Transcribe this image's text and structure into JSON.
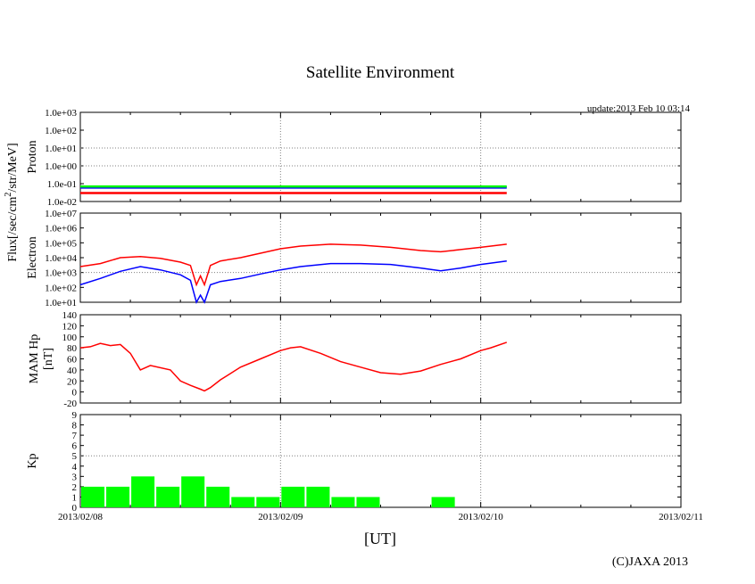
{
  "title": "Satellite Environment",
  "update": "update:2013 Feb 10 03:14",
  "credit": "(C)JAXA 2013",
  "x_unit_label": "[UT]",
  "flux_label": "Flux[/sec/cm",
  "flux_sup": "2",
  "flux_label_rest": "/str/MeV]",
  "colors": {
    "red": "#ff0000",
    "blue": "#0000ff",
    "green": "#00ff00",
    "grid": "#808080"
  },
  "chart_data": [
    {
      "type": "line",
      "panel": "proton",
      "ylabel": "Proton",
      "yscale": "log",
      "ylim": [
        0.01,
        1000
      ],
      "yticks": [
        "1.0e-02",
        "1.0e-01",
        "1.0e+00",
        "1.0e+01",
        "1.0e+02",
        "1.0e+03"
      ],
      "xlim": [
        "2013/02/08",
        "2013/02/11"
      ],
      "series": [
        {
          "color": "red",
          "x": [
            0,
            0.5,
            1.0,
            1.5,
            2.0,
            2.13
          ],
          "y": [
            0.03,
            0.03,
            0.03,
            0.03,
            0.03,
            0.03
          ]
        },
        {
          "color": "blue",
          "x": [
            0,
            0.5,
            1.0,
            1.5,
            2.0,
            2.13
          ],
          "y": [
            0.06,
            0.06,
            0.06,
            0.06,
            0.06,
            0.06
          ]
        },
        {
          "color": "green",
          "x": [
            0,
            0.5,
            1.0,
            1.5,
            2.0,
            2.13
          ],
          "y": [
            0.07,
            0.07,
            0.07,
            0.07,
            0.07,
            0.07
          ]
        }
      ]
    },
    {
      "type": "line",
      "panel": "electron",
      "ylabel": "Electron",
      "yscale": "log",
      "ylim": [
        10,
        10000000
      ],
      "yticks": [
        "1.0e+01",
        "1.0e+02",
        "1.0e+03",
        "1.0e+04",
        "1.0e+05",
        "1.0e+06",
        "1.0e+07"
      ],
      "xlim": [
        "2013/02/08",
        "2013/02/11"
      ],
      "series": [
        {
          "color": "red",
          "x": [
            0,
            0.1,
            0.2,
            0.3,
            0.4,
            0.5,
            0.55,
            0.58,
            0.6,
            0.62,
            0.65,
            0.7,
            0.8,
            0.9,
            1.0,
            1.1,
            1.25,
            1.4,
            1.55,
            1.7,
            1.8,
            1.9,
            2.0,
            2.13
          ],
          "y": [
            2500,
            4000,
            10000,
            12000,
            9000,
            5000,
            3000,
            150,
            600,
            150,
            3000,
            6000,
            10000,
            20000,
            40000,
            60000,
            80000,
            70000,
            50000,
            30000,
            25000,
            35000,
            50000,
            80000
          ]
        },
        {
          "color": "blue",
          "x": [
            0,
            0.1,
            0.2,
            0.3,
            0.4,
            0.5,
            0.55,
            0.58,
            0.6,
            0.62,
            0.65,
            0.7,
            0.8,
            0.9,
            1.0,
            1.1,
            1.25,
            1.4,
            1.55,
            1.7,
            1.8,
            1.9,
            2.0,
            2.13
          ],
          "y": [
            150,
            400,
            1200,
            2500,
            1500,
            700,
            300,
            10,
            30,
            10,
            150,
            250,
            400,
            800,
            1500,
            2500,
            4000,
            4000,
            3500,
            2000,
            1300,
            2000,
            3500,
            6000
          ]
        }
      ]
    },
    {
      "type": "line",
      "panel": "mamhp",
      "ylabel": "MAM Hp",
      "ylabel2": "[nT]",
      "yscale": "linear",
      "ylim": [
        -20,
        140
      ],
      "yticks": [
        "-20",
        "0",
        "20",
        "40",
        "60",
        "80",
        "100",
        "120",
        "140"
      ],
      "xlim": [
        "2013/02/08",
        "2013/02/11"
      ],
      "series": [
        {
          "color": "red",
          "x": [
            0,
            0.05,
            0.1,
            0.15,
            0.2,
            0.25,
            0.3,
            0.35,
            0.45,
            0.5,
            0.55,
            0.6,
            0.62,
            0.65,
            0.7,
            0.8,
            0.9,
            1.0,
            1.05,
            1.1,
            1.2,
            1.3,
            1.4,
            1.5,
            1.6,
            1.7,
            1.8,
            1.9,
            2.0,
            2.05,
            2.13
          ],
          "y": [
            80,
            82,
            88,
            84,
            86,
            70,
            40,
            48,
            40,
            20,
            12,
            5,
            2,
            8,
            22,
            45,
            60,
            75,
            80,
            82,
            70,
            55,
            45,
            35,
            32,
            38,
            50,
            60,
            75,
            80,
            90
          ]
        }
      ]
    },
    {
      "type": "bar",
      "panel": "kp",
      "ylabel": "Kp",
      "ylim": [
        0,
        9
      ],
      "yticks": [
        "0",
        "1",
        "2",
        "3",
        "4",
        "5",
        "6",
        "7",
        "8",
        "9"
      ],
      "xlim": [
        "2013/02/08",
        "2013/02/11"
      ],
      "xticks": [
        "2013/02/08",
        "2013/02/09",
        "2013/02/10",
        "2013/02/11"
      ],
      "bar_width_days": 0.125,
      "bars": [
        {
          "x": 0.0,
          "value": 2
        },
        {
          "x": 0.125,
          "value": 2
        },
        {
          "x": 0.25,
          "value": 3
        },
        {
          "x": 0.375,
          "value": 2
        },
        {
          "x": 0.5,
          "value": 3
        },
        {
          "x": 0.625,
          "value": 2
        },
        {
          "x": 0.75,
          "value": 1
        },
        {
          "x": 0.875,
          "value": 1
        },
        {
          "x": 1.0,
          "value": 2
        },
        {
          "x": 1.125,
          "value": 2
        },
        {
          "x": 1.25,
          "value": 1
        },
        {
          "x": 1.375,
          "value": 1
        },
        {
          "x": 1.75,
          "value": 1
        }
      ]
    }
  ]
}
